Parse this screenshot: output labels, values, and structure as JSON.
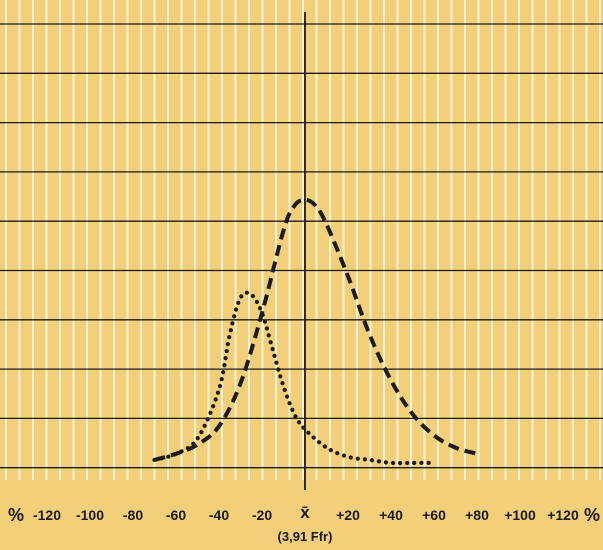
{
  "chart_data": {
    "type": "line",
    "x_unit_label": "%",
    "x_unit_label_right": "%",
    "x_tick_labels": [
      "-120",
      "-100",
      "-80",
      "-60",
      "-40",
      "-20",
      "x̄",
      "+20",
      "+40",
      "+60",
      "+80",
      "+100",
      "+120"
    ],
    "x_tick_values": [
      -120,
      -100,
      -80,
      -60,
      -40,
      -20,
      0,
      20,
      40,
      60,
      80,
      100,
      120
    ],
    "center_label": "x̄",
    "center_annotation": "(3,91 Ffr)",
    "xlim": [
      -128,
      128
    ],
    "ylim": [
      0,
      1
    ],
    "grid": true,
    "series": [
      {
        "style": "dashed",
        "x": [
          -70,
          -60,
          -50,
          -40,
          -30,
          -20,
          -10,
          -5,
          0,
          5,
          10,
          20,
          30,
          40,
          50,
          60,
          70,
          80
        ],
        "y": [
          0.02,
          0.04,
          0.07,
          0.13,
          0.27,
          0.5,
          0.77,
          0.85,
          0.87,
          0.85,
          0.79,
          0.62,
          0.43,
          0.28,
          0.17,
          0.1,
          0.06,
          0.04
        ]
      },
      {
        "style": "dotted",
        "x": [
          -70,
          -60,
          -50,
          -40,
          -35,
          -30,
          -25,
          -20,
          -15,
          -10,
          -5,
          0,
          10,
          20,
          30,
          40,
          50,
          60
        ],
        "y": [
          0.02,
          0.04,
          0.09,
          0.25,
          0.43,
          0.55,
          0.56,
          0.5,
          0.38,
          0.26,
          0.17,
          0.12,
          0.06,
          0.03,
          0.02,
          0.01,
          0.01,
          0.01
        ]
      }
    ]
  }
}
